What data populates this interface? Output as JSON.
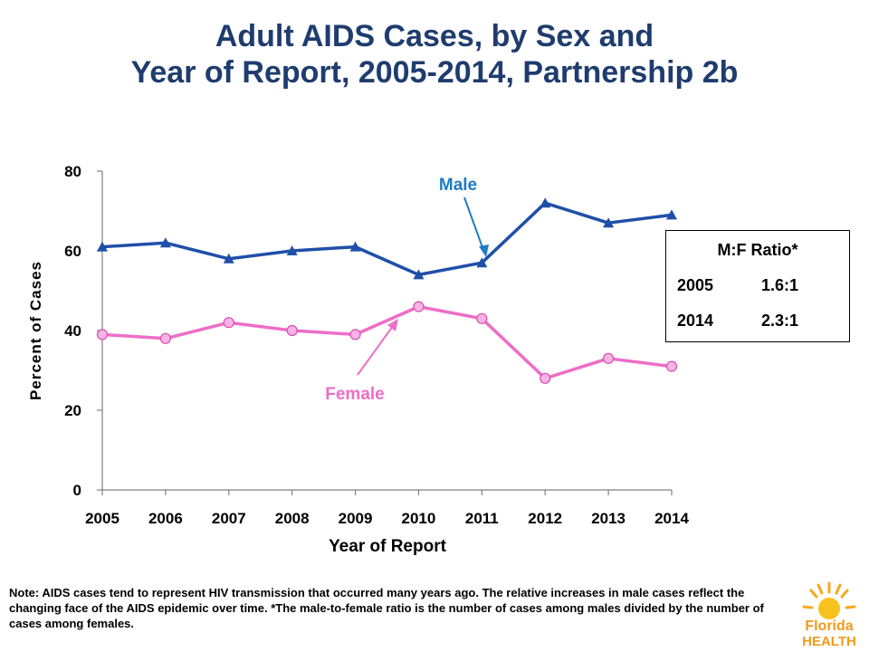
{
  "title_line1": "Adult AIDS Cases, by Sex and",
  "title_line2": "Year of Report, 2005-2014, Partnership 2b",
  "chart_data": {
    "type": "line",
    "x": [
      2005,
      2006,
      2007,
      2008,
      2009,
      2010,
      2011,
      2012,
      2013,
      2014
    ],
    "series": [
      {
        "name": "Male",
        "values": [
          61,
          62,
          58,
          60,
          61,
          54,
          57,
          72,
          67,
          69
        ],
        "color": "#1f4fa8",
        "marker": "triangle"
      },
      {
        "name": "Female",
        "values": [
          39,
          38,
          42,
          40,
          39,
          46,
          43,
          28,
          33,
          31
        ],
        "color": "#ee6dc8",
        "marker": "circle"
      }
    ],
    "xlabel": "Year of Report",
    "ylabel": "Percent of Cases",
    "ylim": [
      0,
      80
    ],
    "yticks": [
      0,
      20,
      40,
      60,
      80
    ],
    "grid": false,
    "annotations": [
      {
        "text": "Male",
        "color": "#1f7bc6"
      },
      {
        "text": "Female",
        "color": "#ee6dc8"
      }
    ]
  },
  "ratio_box": {
    "heading": "M:F Ratio*",
    "rows": [
      {
        "year": "2005",
        "ratio": "1.6:1"
      },
      {
        "year": "2014",
        "ratio": "2.3:1"
      }
    ]
  },
  "note": "Note: AIDS cases tend to represent HIV transmission that occurred many years ago.  The relative increases in male cases reflect the changing face of the AIDS epidemic over time. *The male-to-female ratio is the number of cases among males divided by the number of cases among females.",
  "logo": {
    "line1": "Florida",
    "line2": "HEALTH"
  }
}
